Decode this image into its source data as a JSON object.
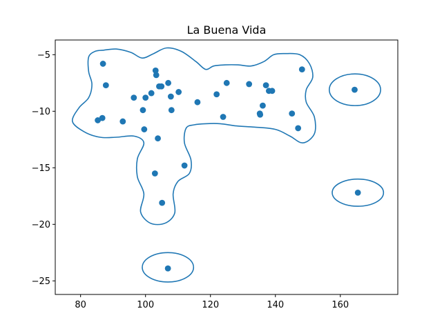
{
  "chart_data": {
    "type": "scatter",
    "title": "La Buena Vida",
    "xlabel": "",
    "ylabel": "",
    "xlim": [
      72.2,
      177.7
    ],
    "ylim": [
      -26.2,
      -3.7
    ],
    "xticks": [
      80,
      100,
      120,
      140,
      160
    ],
    "yticks": [
      -5,
      -10,
      -15,
      -20,
      -25
    ],
    "xtick_labels": [
      "80",
      "100",
      "120",
      "140",
      "160"
    ],
    "ytick_labels": [
      "−5",
      "−10",
      "−15",
      "−20",
      "−25"
    ],
    "grid": false,
    "point_color": "#1f77b4",
    "series": [
      {
        "name": "points",
        "x": [
          86.9,
          87.8,
          85.3,
          86.7,
          93.0,
          96.4,
          99.2,
          99.6,
          100.0,
          101.8,
          103.1,
          103.3,
          104.2,
          104.9,
          103.8,
          102.9,
          105.1,
          107.0,
          107.8,
          108.0,
          110.2,
          112.0,
          116.0,
          121.9,
          123.9,
          125.0,
          131.9,
          135.2,
          135.3,
          136.1,
          137.1,
          138.0,
          139.0,
          145.1,
          147.0,
          148.2,
          164.4,
          165.4,
          106.9
        ],
        "y": [
          -5.8,
          -7.7,
          -10.8,
          -10.6,
          -10.9,
          -8.8,
          -9.9,
          -11.6,
          -8.8,
          -8.4,
          -6.4,
          -6.8,
          -7.8,
          -7.8,
          -12.4,
          -15.5,
          -18.1,
          -7.5,
          -8.7,
          -9.9,
          -8.3,
          -14.8,
          -9.2,
          -8.5,
          -10.5,
          -7.5,
          -7.6,
          -10.2,
          -10.3,
          -9.5,
          -7.7,
          -8.2,
          -8.2,
          -10.2,
          -11.5,
          -6.3,
          -8.1,
          -17.2,
          -23.9
        ]
      }
    ],
    "contours": [
      {
        "name": "main-region",
        "path": [
          [
            87.0,
            -4.6
          ],
          [
            91.0,
            -4.5
          ],
          [
            95.5,
            -4.8
          ],
          [
            99.0,
            -5.3
          ],
          [
            102.5,
            -4.9
          ],
          [
            106.5,
            -4.4
          ],
          [
            111.0,
            -4.7
          ],
          [
            115.5,
            -5.6
          ],
          [
            118.5,
            -6.3
          ],
          [
            121.0,
            -6.0
          ],
          [
            124.5,
            -5.9
          ],
          [
            128.5,
            -5.9
          ],
          [
            132.5,
            -6.0
          ],
          [
            136.5,
            -5.6
          ],
          [
            139.5,
            -5.0
          ],
          [
            143.0,
            -4.9
          ],
          [
            147.5,
            -5.0
          ],
          [
            150.5,
            -5.8
          ],
          [
            151.5,
            -7.0
          ],
          [
            149.5,
            -8.1
          ],
          [
            149.5,
            -9.2
          ],
          [
            152.0,
            -10.5
          ],
          [
            152.0,
            -12.0
          ],
          [
            148.5,
            -12.8
          ],
          [
            144.5,
            -12.2
          ],
          [
            140.0,
            -11.6
          ],
          [
            133.5,
            -11.4
          ],
          [
            128.0,
            -11.3
          ],
          [
            123.0,
            -11.1
          ],
          [
            118.5,
            -11.1
          ],
          [
            115.0,
            -11.2
          ],
          [
            112.5,
            -11.5
          ],
          [
            112.0,
            -12.8
          ],
          [
            114.0,
            -14.3
          ],
          [
            113.5,
            -15.5
          ],
          [
            110.0,
            -16.2
          ],
          [
            108.5,
            -17.3
          ],
          [
            109.0,
            -19.0
          ],
          [
            106.0,
            -19.9
          ],
          [
            101.5,
            -19.9
          ],
          [
            98.5,
            -18.9
          ],
          [
            99.5,
            -17.3
          ],
          [
            97.5,
            -15.8
          ],
          [
            97.5,
            -14.2
          ],
          [
            99.5,
            -12.8
          ],
          [
            96.5,
            -12.2
          ],
          [
            91.0,
            -12.3
          ],
          [
            86.0,
            -12.3
          ],
          [
            81.0,
            -11.8
          ],
          [
            77.5,
            -10.9
          ],
          [
            79.5,
            -9.7
          ],
          [
            82.5,
            -8.8
          ],
          [
            83.5,
            -7.6
          ],
          [
            82.5,
            -6.5
          ],
          [
            82.5,
            -5.2
          ],
          [
            84.5,
            -4.7
          ],
          [
            87.0,
            -4.6
          ]
        ]
      },
      {
        "name": "upper-right-island",
        "ellipse": {
          "cx": 164.5,
          "cy": -8.1,
          "rx": 7.9,
          "ry": 1.4
        }
      },
      {
        "name": "lower-right-island",
        "ellipse": {
          "cx": 165.4,
          "cy": -17.2,
          "rx": 7.9,
          "ry": 1.2
        }
      },
      {
        "name": "bottom-island",
        "ellipse": {
          "cx": 106.9,
          "cy": -23.8,
          "rx": 7.9,
          "ry": 1.3
        }
      }
    ],
    "contour_color": "#1f77b4"
  }
}
